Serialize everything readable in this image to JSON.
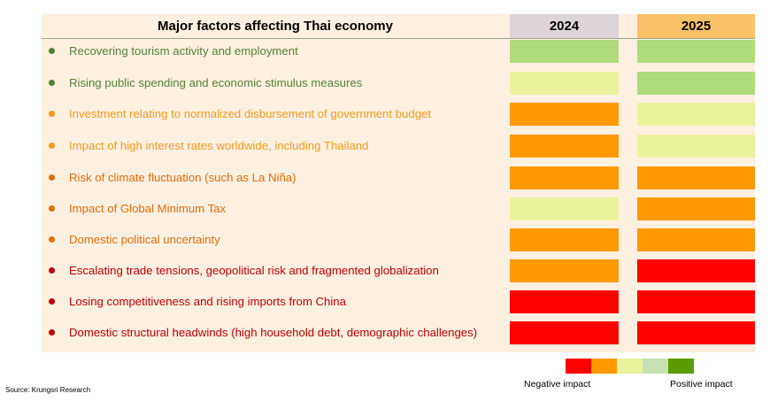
{
  "chart_data": {
    "type": "table",
    "title": "Major factors affecting Thai economy",
    "columns": [
      "2024",
      "2025"
    ],
    "rows": [
      {
        "label": "Recovering tourism activity and employment",
        "label_color": "#548235",
        "y2024": "#b0db7c",
        "y2025": "#b0db7c"
      },
      {
        "label": "Rising public spending and economic stimulus measures",
        "label_color": "#548235",
        "y2024": "#eaf29c",
        "y2025": "#b0db7c"
      },
      {
        "label": "Investment relating to normalized disbursement of government budget",
        "label_color": "#f79a1b",
        "y2024": "#ff9900",
        "y2025": "#eaf29c"
      },
      {
        "label": "Impact of high interest rates worldwide, including Thailand",
        "label_color": "#f79a1b",
        "y2024": "#ff9900",
        "y2025": "#eaf29c"
      },
      {
        "label": "Risk of climate fluctuation (such as La Niña)",
        "label_color": "#e46c0a",
        "y2024": "#ff9900",
        "y2025": "#ff9900"
      },
      {
        "label": "Impact of Global Minimum Tax",
        "label_color": "#e46c0a",
        "y2024": "#eaf29c",
        "y2025": "#ff9900"
      },
      {
        "label": "Domestic political uncertainty",
        "label_color": "#e46c0a",
        "y2024": "#ff9900",
        "y2025": "#ff9900"
      },
      {
        "label": "Escalating trade tensions, geopolitical risk and fragmented globalization",
        "label_color": "#c00000",
        "y2024": "#ff9900",
        "y2025": "#ff0000"
      },
      {
        "label": "Losing competitiveness and rising imports from China",
        "label_color": "#c00000",
        "y2024": "#ff0000",
        "y2025": "#ff0000"
      },
      {
        "label": "Domestic structural headwinds (high household debt, demographic challenges)",
        "label_color": "#c00000",
        "y2024": "#ff0000",
        "y2025": "#ff0000"
      }
    ],
    "legend": {
      "scale_colors": [
        "#ff0000",
        "#ff9900",
        "#eaf29c",
        "#c6e0b4",
        "#5b9c00"
      ],
      "negative_label": "Negative impact",
      "positive_label": "Positive impact"
    }
  },
  "source": "Source: Krungsri Research"
}
